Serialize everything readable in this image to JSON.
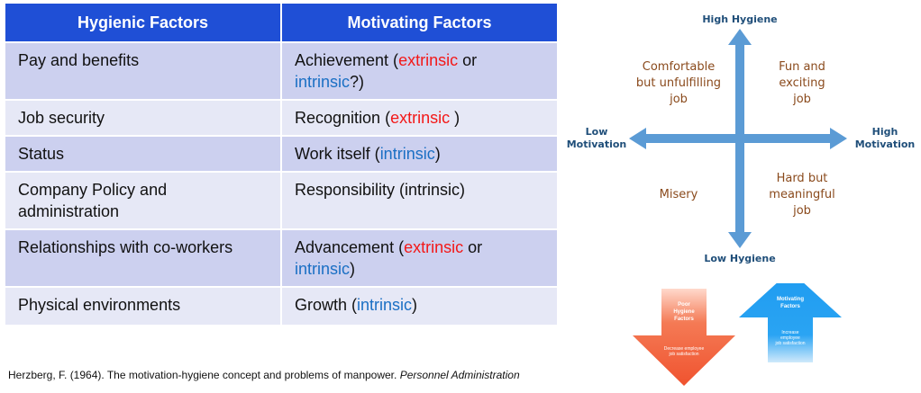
{
  "table": {
    "headers": [
      "Hygienic Factors",
      "Motivating Factors"
    ],
    "rows": [
      {
        "hygienic": "Pay and benefits",
        "motivating": [
          {
            "t": "Achievement ("
          },
          {
            "t": "extrinsic",
            "c": "red"
          },
          {
            "t": " or "
          },
          {
            "t": "intrinsic",
            "c": "blue"
          },
          {
            "t": "?)"
          }
        ]
      },
      {
        "hygienic": "Job security",
        "motivating": [
          {
            "t": "Recognition ("
          },
          {
            "t": "extrinsic",
            "c": "red"
          },
          {
            "t": " )"
          }
        ]
      },
      {
        "hygienic": "Status",
        "motivating": [
          {
            "t": "Work itself ("
          },
          {
            "t": "intrinsic",
            "c": "blue"
          },
          {
            "t": ")"
          }
        ]
      },
      {
        "hygienic": "Company Policy and administration",
        "motivating": [
          {
            "t": "Responsibility (intrinsic)"
          }
        ]
      },
      {
        "hygienic": "Relationships with co-workers",
        "motivating": [
          {
            "t": "Advancement ("
          },
          {
            "t": "extrinsic",
            "c": "red"
          },
          {
            "t": " or "
          },
          {
            "t": "intrinsic",
            "c": "blue"
          },
          {
            "t": ")"
          }
        ]
      },
      {
        "hygienic": "Physical environments",
        "motivating": [
          {
            "t": "Growth ("
          },
          {
            "t": "intrinsic",
            "c": "blue"
          },
          {
            "t": ")"
          }
        ]
      }
    ]
  },
  "citation": {
    "text": "Herzberg, F. (1964). The motivation-hygiene concept and problems of manpower. ",
    "journal": "Personnel Administration"
  },
  "quadrant": {
    "axis_top": "High Hygiene",
    "axis_bottom": "Low Hygiene",
    "axis_left": "Low\nMotivation",
    "axis_right": "High\nMotivation",
    "top_left": "Comfortable\nbut unfulfilling\njob",
    "top_right": "Fun and\nexciting\njob",
    "bottom_left": "Misery",
    "bottom_right": "Hard but\nmeaningful\njob"
  },
  "arrows": {
    "down_title": "Poor\nHygiene\nFactors",
    "down_sub": "Decrease employee\njob satisfaction",
    "up_title": "Motivating\nFactors",
    "up_sub": "Increase\nemployee\njob satisfaction"
  },
  "colors": {
    "header_bg": "#1f4fd6",
    "axis_arrow": "#5b9bd5",
    "down_arrow": "#f26b4b",
    "up_arrow": "#1e9bf0"
  }
}
